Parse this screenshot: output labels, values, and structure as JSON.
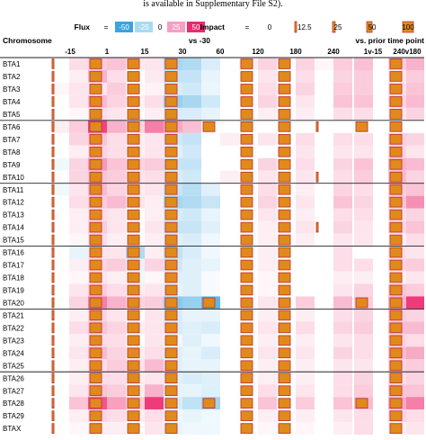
{
  "caption_fragment": "is available in Supplementary File S2).",
  "legend": {
    "flux_label": "Flux",
    "flux_equals": "=",
    "flux_values": [
      "-50",
      "-25",
      "0",
      "25",
      "50"
    ],
    "flux_colors": [
      "#3ba3e0",
      "#a9daf3",
      "#ffffff",
      "#f59fc4",
      "#ec2a6e"
    ],
    "impact_label": "Impact",
    "impact_equals": "=",
    "impact_values": [
      "0",
      "12.5",
      "25",
      "50",
      "100"
    ],
    "bar_fill": "#e08a1c",
    "bar_stroke": "#c0392b"
  },
  "header": {
    "chromosome": "Chromosome",
    "vs_baseline": "vs -30",
    "vs_prior": "vs. prior time point"
  },
  "chart_data": {
    "type": "heatmap",
    "columns": [
      "-15",
      "1",
      "15",
      "30",
      "60",
      "120",
      "180",
      "240",
      "1v-15",
      "240v180"
    ],
    "column_groups": [
      {
        "label": "vs -30",
        "columns": [
          "-15",
          "1",
          "15",
          "30",
          "60",
          "120",
          "180",
          "240"
        ]
      },
      {
        "label": "vs. prior time point",
        "columns": [
          "1v-15",
          "240v180"
        ]
      }
    ],
    "rows": [
      "BTA1",
      "BTA2",
      "BTA3",
      "BTA4",
      "BTA5",
      "BTA6",
      "BTA7",
      "BTA8",
      "BTA9",
      "BTA10",
      "BTA11",
      "BTA12",
      "BTA13",
      "BTA14",
      "BTA15",
      "BTA16",
      "BTA17",
      "BTA18",
      "BTA19",
      "BTA20",
      "BTA21",
      "BTA22",
      "BTA23",
      "BTA24",
      "BTA25",
      "BTA26",
      "BTA27",
      "BTA28",
      "BTA29",
      "BTAX"
    ],
    "row_groups": [
      5,
      5,
      5,
      5,
      5,
      5
    ],
    "flux_scale": [
      -50,
      50
    ],
    "impact_scale": [
      0,
      100
    ],
    "flux": [
      [
        0,
        8,
        12,
        14,
        5,
        6,
        -22,
        -20,
        -10,
        0,
        4,
        10,
        0,
        10,
        2,
        12,
        15,
        0,
        12,
        18
      ],
      [
        0,
        4,
        18,
        8,
        0,
        5,
        -15,
        -15,
        -6,
        0,
        0,
        6,
        0,
        8,
        0,
        10,
        12,
        0,
        6,
        12
      ],
      [
        2,
        6,
        6,
        12,
        0,
        3,
        -10,
        -12,
        -5,
        0,
        0,
        8,
        0,
        10,
        0,
        12,
        12,
        0,
        8,
        14
      ],
      [
        0,
        6,
        16,
        10,
        3,
        8,
        -26,
        -22,
        -12,
        0,
        0,
        10,
        0,
        6,
        0,
        14,
        14,
        0,
        10,
        16
      ],
      [
        0,
        2,
        8,
        6,
        0,
        4,
        -10,
        -10,
        -6,
        0,
        0,
        4,
        0,
        4,
        0,
        8,
        8,
        0,
        6,
        10
      ],
      [
        4,
        12,
        44,
        18,
        10,
        30,
        20,
        15,
        0,
        0,
        0,
        0,
        0,
        0,
        0,
        0,
        0,
        0,
        0,
        0
      ],
      [
        0,
        10,
        14,
        8,
        4,
        6,
        -12,
        -15,
        0,
        4,
        0,
        6,
        0,
        8,
        0,
        8,
        8,
        0,
        12,
        10
      ],
      [
        0,
        4,
        10,
        8,
        4,
        6,
        -8,
        -12,
        0,
        0,
        0,
        0,
        0,
        6,
        0,
        6,
        6,
        0,
        10,
        6
      ],
      [
        -4,
        10,
        24,
        14,
        10,
        12,
        -14,
        -15,
        0,
        0,
        0,
        10,
        0,
        8,
        0,
        10,
        14,
        0,
        18,
        16
      ],
      [
        0,
        10,
        14,
        12,
        6,
        8,
        -10,
        -12,
        0,
        4,
        0,
        6,
        0,
        6,
        0,
        8,
        12,
        0,
        16,
        10
      ],
      [
        -4,
        6,
        16,
        10,
        4,
        6,
        -14,
        -18,
        -8,
        0,
        0,
        8,
        0,
        4,
        0,
        10,
        8,
        0,
        12,
        14
      ],
      [
        0,
        8,
        12,
        16,
        6,
        4,
        -22,
        -20,
        -14,
        0,
        0,
        10,
        0,
        6,
        0,
        14,
        10,
        0,
        14,
        26
      ],
      [
        0,
        4,
        8,
        6,
        0,
        4,
        -10,
        -12,
        -6,
        0,
        0,
        6,
        0,
        4,
        0,
        8,
        8,
        0,
        8,
        10
      ],
      [
        0,
        4,
        12,
        6,
        0,
        6,
        -14,
        -14,
        -8,
        0,
        0,
        4,
        0,
        6,
        0,
        10,
        6,
        0,
        10,
        14
      ],
      [
        0,
        2,
        8,
        4,
        0,
        4,
        -8,
        -10,
        -4,
        0,
        0,
        4,
        0,
        4,
        0,
        6,
        6,
        0,
        4,
        8
      ],
      [
        0,
        -6,
        6,
        6,
        -20,
        4,
        -16,
        -10,
        -4,
        0,
        0,
        4,
        0,
        0,
        0,
        8,
        0,
        0,
        8,
        6
      ],
      [
        0,
        4,
        10,
        12,
        -6,
        10,
        -12,
        -8,
        -6,
        0,
        0,
        4,
        0,
        0,
        0,
        8,
        8,
        0,
        10,
        12
      ],
      [
        0,
        2,
        6,
        4,
        -4,
        2,
        -8,
        -8,
        -2,
        0,
        0,
        2,
        0,
        0,
        0,
        4,
        4,
        0,
        4,
        6
      ],
      [
        0,
        6,
        12,
        8,
        4,
        6,
        -6,
        -8,
        -2,
        0,
        0,
        2,
        0,
        0,
        0,
        6,
        10,
        0,
        14,
        12
      ],
      [
        0,
        10,
        30,
        18,
        10,
        12,
        -30,
        -26,
        -40,
        0,
        0,
        6,
        0,
        12,
        0,
        16,
        12,
        0,
        18,
        46
      ],
      [
        0,
        4,
        10,
        6,
        0,
        6,
        -10,
        -6,
        -6,
        0,
        0,
        4,
        0,
        4,
        0,
        8,
        10,
        0,
        12,
        10
      ],
      [
        0,
        8,
        14,
        10,
        4,
        6,
        -10,
        -8,
        -10,
        0,
        0,
        6,
        0,
        8,
        0,
        10,
        12,
        0,
        16,
        16
      ],
      [
        0,
        4,
        8,
        8,
        0,
        6,
        -4,
        -8,
        -4,
        0,
        0,
        4,
        0,
        4,
        0,
        6,
        8,
        0,
        10,
        8
      ],
      [
        0,
        6,
        16,
        10,
        4,
        8,
        -8,
        -6,
        -10,
        0,
        0,
        6,
        0,
        6,
        0,
        10,
        8,
        0,
        16,
        20
      ],
      [
        0,
        4,
        8,
        12,
        6,
        16,
        -8,
        -6,
        -6,
        0,
        0,
        4,
        0,
        4,
        0,
        6,
        6,
        0,
        10,
        12
      ],
      [
        0,
        4,
        8,
        8,
        4,
        6,
        -8,
        -10,
        -8,
        0,
        0,
        4,
        0,
        4,
        0,
        8,
        10,
        0,
        8,
        10
      ],
      [
        0,
        6,
        14,
        12,
        4,
        18,
        -6,
        -6,
        -8,
        0,
        0,
        8,
        0,
        6,
        0,
        8,
        12,
        0,
        14,
        14
      ],
      [
        0,
        14,
        40,
        22,
        12,
        46,
        -10,
        -16,
        -24,
        0,
        0,
        14,
        0,
        12,
        0,
        14,
        16,
        0,
        20,
        30
      ],
      [
        0,
        4,
        10,
        8,
        4,
        8,
        -4,
        -6,
        -4,
        0,
        0,
        4,
        0,
        4,
        0,
        6,
        8,
        0,
        10,
        8
      ],
      [
        0,
        2,
        4,
        4,
        0,
        6,
        -6,
        -4,
        -4,
        0,
        0,
        2,
        0,
        2,
        0,
        4,
        8,
        0,
        4,
        6
      ]
    ],
    "impact": [
      [
        15,
        100,
        100,
        100,
        0,
        100,
        100,
        0,
        0,
        100
      ],
      [
        15,
        100,
        100,
        100,
        0,
        100,
        100,
        0,
        0,
        100
      ],
      [
        15,
        100,
        100,
        100,
        0,
        100,
        100,
        0,
        0,
        100
      ],
      [
        15,
        100,
        100,
        100,
        0,
        100,
        100,
        0,
        0,
        100
      ],
      [
        15,
        100,
        100,
        100,
        0,
        100,
        100,
        0,
        0,
        100
      ],
      [
        15,
        100,
        100,
        100,
        100,
        100,
        100,
        15,
        100,
        100
      ],
      [
        15,
        100,
        100,
        100,
        0,
        100,
        100,
        0,
        0,
        100
      ],
      [
        15,
        100,
        100,
        100,
        0,
        100,
        100,
        0,
        0,
        100
      ],
      [
        15,
        100,
        100,
        100,
        0,
        100,
        100,
        0,
        0,
        100
      ],
      [
        15,
        100,
        100,
        100,
        0,
        100,
        100,
        15,
        0,
        100
      ],
      [
        15,
        100,
        100,
        100,
        0,
        100,
        100,
        0,
        0,
        100
      ],
      [
        15,
        100,
        100,
        100,
        0,
        100,
        100,
        0,
        0,
        100
      ],
      [
        15,
        100,
        100,
        100,
        0,
        100,
        100,
        0,
        0,
        100
      ],
      [
        15,
        100,
        100,
        100,
        0,
        100,
        100,
        15,
        0,
        100
      ],
      [
        15,
        100,
        100,
        100,
        0,
        100,
        100,
        0,
        0,
        100
      ],
      [
        15,
        100,
        100,
        100,
        0,
        100,
        100,
        0,
        0,
        100
      ],
      [
        15,
        100,
        100,
        100,
        0,
        100,
        100,
        0,
        0,
        100
      ],
      [
        15,
        100,
        100,
        100,
        0,
        100,
        100,
        0,
        0,
        100
      ],
      [
        15,
        100,
        100,
        100,
        0,
        100,
        100,
        0,
        0,
        100
      ],
      [
        15,
        100,
        100,
        100,
        100,
        100,
        100,
        0,
        100,
        100
      ],
      [
        15,
        100,
        100,
        100,
        0,
        100,
        100,
        0,
        0,
        100
      ],
      [
        15,
        100,
        100,
        100,
        0,
        100,
        100,
        0,
        0,
        100
      ],
      [
        15,
        100,
        100,
        100,
        0,
        100,
        100,
        0,
        0,
        100
      ],
      [
        15,
        100,
        100,
        100,
        0,
        100,
        100,
        0,
        0,
        100
      ],
      [
        15,
        100,
        100,
        100,
        0,
        100,
        100,
        0,
        0,
        100
      ],
      [
        15,
        100,
        100,
        100,
        0,
        100,
        100,
        0,
        0,
        100
      ],
      [
        15,
        100,
        100,
        100,
        0,
        100,
        100,
        0,
        0,
        100
      ],
      [
        15,
        100,
        100,
        100,
        100,
        100,
        100,
        0,
        100,
        100
      ],
      [
        15,
        100,
        100,
        100,
        0,
        100,
        100,
        0,
        0,
        100
      ],
      [
        15,
        100,
        100,
        100,
        0,
        100,
        100,
        0,
        0,
        100
      ]
    ]
  }
}
